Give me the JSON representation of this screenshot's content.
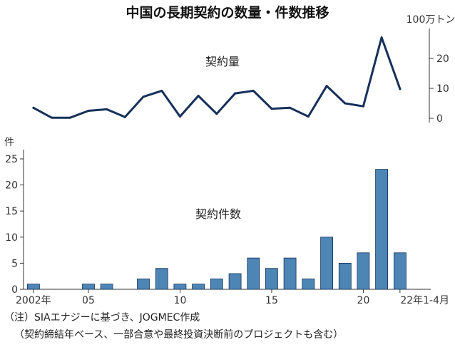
{
  "title": "中国の長期契約の数量・件数推移",
  "notes": [
    "（注）SIAエナジーに基づき、JOGMEC作成",
    "（契約締結年ベース、一部合意や最終投資決断前のプロジェクトも含む）"
  ],
  "colors": {
    "line": "#16305a",
    "bar": "#4d86b4",
    "bar_edge": "#16305a",
    "axis": "#333333"
  },
  "chart_data": [
    {
      "type": "line",
      "series_label": "契約量",
      "unit": "100万トン",
      "x": [
        "2002",
        "2003",
        "2004",
        "2005",
        "2006",
        "2007",
        "2008",
        "2009",
        "2010",
        "2011",
        "2012",
        "2013",
        "2014",
        "2015",
        "2016",
        "2017",
        "2018",
        "2019",
        "2020",
        "2021",
        "22年1-4月"
      ],
      "values": [
        3.5,
        0.2,
        0.2,
        2.5,
        3.0,
        0.4,
        7.2,
        9.2,
        0.6,
        7.5,
        1.5,
        8.3,
        9.2,
        3.2,
        3.5,
        0.6,
        10.8,
        5.0,
        4.0,
        27.0,
        9.8
      ],
      "ylim": [
        0,
        30
      ],
      "yticks": [
        "0",
        "10",
        "20"
      ],
      "grid": false
    },
    {
      "type": "bar",
      "series_label": "契約件数",
      "unit": "件",
      "categories": [
        "2002",
        "2003",
        "2004",
        "2005",
        "2006",
        "2007",
        "2008",
        "2009",
        "2010",
        "2011",
        "2012",
        "2013",
        "2014",
        "2015",
        "2016",
        "2017",
        "2018",
        "2019",
        "2020",
        "2021",
        "22年1-4月"
      ],
      "values": [
        1,
        0,
        0,
        1,
        1,
        0,
        2,
        4,
        1,
        1,
        2,
        3,
        6,
        4,
        6,
        2,
        10,
        5,
        7,
        23,
        7
      ],
      "ylim": [
        0,
        25
      ],
      "yticks": [
        "0",
        "5",
        "10",
        "15",
        "20",
        "25"
      ],
      "xticklabels": [
        "2002年",
        "05",
        "10",
        "15",
        "20",
        "22年1-4月"
      ],
      "grid": false
    }
  ]
}
